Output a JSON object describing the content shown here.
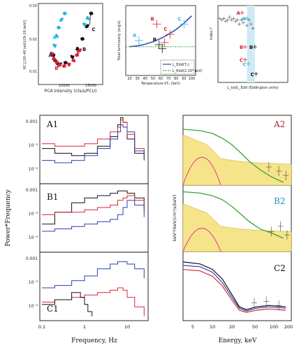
{
  "colors": {
    "black": "#111111",
    "red": "#d8243a",
    "cyan": "#2ab6e0",
    "blue": "#2e3fb0",
    "magenta": "#e0308c",
    "green": "#3ca23c",
    "yellow": "#f6e48a",
    "shade": "#cfeaf5"
  },
  "chart_data": [
    {
      "type": "scatter",
      "xlabel": "PCA Intensity (cts/s/PCU)",
      "ylabel": "HC [(20-40 keV)/(9-20 keV)]",
      "xticks": [
        "10000",
        "15000"
      ],
      "yticks": [
        "0.03",
        "0.02",
        "0.01"
      ],
      "xlim": [
        7000,
        16500
      ],
      "ylim": [
        0.008,
        0.033
      ],
      "series": [
        {
          "color": "black",
          "x": [
            9200,
            9500,
            9800,
            10200,
            11000,
            12000,
            12800,
            13500,
            14200,
            14800
          ],
          "y": [
            0.017,
            0.0155,
            0.0145,
            0.0142,
            0.0148,
            0.0165,
            0.019,
            0.022,
            0.026,
            0.03
          ]
        },
        {
          "color": "red",
          "x": [
            9000,
            9300,
            9700,
            10100,
            10800,
            11500,
            12200,
            12700,
            13100
          ],
          "y": [
            0.0175,
            0.016,
            0.0148,
            0.014,
            0.0138,
            0.0142,
            0.0155,
            0.017,
            0.0185
          ]
        },
        {
          "color": "cyan",
          "x": [
            9400,
            9700,
            10000,
            10400,
            10900,
            13800,
            14300
          ],
          "y": [
            0.02,
            0.023,
            0.0255,
            0.028,
            0.03,
            0.0265,
            0.0285
          ]
        }
      ],
      "point_labels": [
        {
          "text": "A",
          "color": "cyan",
          "x": 9100,
          "y": 0.022
        },
        {
          "text": "A",
          "color": "black",
          "x": 8500,
          "y": 0.0165
        },
        {
          "text": "B",
          "color": "red",
          "x": 9400,
          "y": 0.0125
        },
        {
          "text": "C",
          "color": "red",
          "x": 12600,
          "y": 0.0175
        },
        {
          "text": "B",
          "color": "black",
          "x": 13500,
          "y": 0.0183
        },
        {
          "text": "C",
          "color": "black",
          "x": 14900,
          "y": 0.0245
        }
      ]
    },
    {
      "type": "scatter",
      "xlabel": "Temperature kT_e (keV)",
      "ylabel": "Total luminosity (erg/s)",
      "xticks": [
        "20",
        "30",
        "40",
        "50",
        "60",
        "70",
        "80",
        "90",
        "100"
      ],
      "yticks": [
        "1.5",
        "1",
        "0.5"
      ],
      "xlim": [
        15,
        105
      ],
      "ylim": [
        0.3,
        2.0
      ],
      "model_curve": {
        "x": [
          20,
          30,
          40,
          50,
          60,
          70,
          80,
          90,
          100
        ],
        "y": [
          1.0,
          1.02,
          1.06,
          1.12,
          1.2,
          1.3,
          1.42,
          1.57,
          1.75
        ]
      },
      "edd_line": 1.0,
      "points": [
        {
          "label": "A",
          "color": "cyan",
          "x": 32,
          "y": 1.15
        },
        {
          "label": "B",
          "color": "red",
          "x": 55,
          "y": 1.55
        },
        {
          "label": "B",
          "color": "black",
          "x": 58,
          "y": 1.05
        },
        {
          "label": "C",
          "color": "red",
          "x": 72,
          "y": 1.3
        },
        {
          "label": "C",
          "color": "cyan",
          "x": 90,
          "y": 1.55
        },
        {
          "label": "",
          "color": "red",
          "x": 65,
          "y": 1.1
        },
        {
          "label": "",
          "color": "black",
          "x": 62,
          "y": 0.95
        }
      ],
      "legend": [
        "L_Edd(Te)",
        "L_Edd(2.10^8 keV)"
      ],
      "legend_placement": "bottom-right"
    },
    {
      "type": "scatter",
      "xlabel": "L_tot/L_Edd (Eddington units)",
      "ylabel": "Index Γ",
      "xticks": [
        "1",
        "1.5",
        "2"
      ],
      "yticks": [
        "2.5",
        "2",
        "1.5",
        "1",
        "0.5"
      ],
      "xlim": [
        0.8,
        2.6
      ],
      "ylim": [
        0.3,
        3.0
      ],
      "shaded_band": [
        1.55,
        1.75
      ],
      "series": [
        {
          "color": "grey",
          "x": [
            0.85,
            0.9,
            0.95,
            1.0,
            1.05,
            1.1,
            1.15,
            1.2,
            1.25,
            1.3,
            1.35,
            1.4,
            1.45,
            1.5,
            1.55,
            1.6,
            1.65,
            1.7
          ],
          "y": [
            2.55,
            2.5,
            2.55,
            2.45,
            2.5,
            2.6,
            2.5,
            2.55,
            2.45,
            2.5,
            2.35,
            2.5,
            2.4,
            2.55,
            2.3,
            2.5,
            2.35,
            2.2
          ]
        }
      ],
      "point_labels": [
        {
          "text": "A",
          "color": "red",
          "x": 1.42,
          "y": 2.75
        },
        {
          "text": "A",
          "color": "cyan",
          "x": 1.55,
          "y": 2.55
        },
        {
          "text": "B",
          "color": "red",
          "x": 1.5,
          "y": 1.55
        },
        {
          "text": "B",
          "color": "black",
          "x": 1.75,
          "y": 1.55
        },
        {
          "text": "C",
          "color": "red",
          "x": 1.5,
          "y": 1.1
        },
        {
          "text": "C",
          "color": "cyan",
          "x": 1.58,
          "y": 0.95
        },
        {
          "text": "C",
          "color": "black",
          "x": 1.78,
          "y": 0.6
        }
      ]
    },
    {
      "type": "line",
      "panels": [
        "A1",
        "B1",
        "C1"
      ],
      "xlabel": "Frequency, Hz",
      "ylabel": "Power*Frequency",
      "xticks": [
        "0.1",
        "1",
        "10"
      ],
      "yticks": [
        "0.001",
        "10^-3",
        "10^-4"
      ],
      "x_scale": "log",
      "series_A1": [
        {
          "color": "black",
          "x": [
            0.1,
            0.2,
            0.5,
            1,
            2,
            4,
            6,
            7,
            8,
            10,
            15,
            25
          ],
          "y": [
            -3.7,
            -3.9,
            -4.0,
            -3.9,
            -3.6,
            -3.2,
            -2.7,
            -2.4,
            -2.6,
            -3.3,
            -3.9,
            -4.2
          ]
        },
        {
          "color": "red",
          "x": [
            0.1,
            0.2,
            0.5,
            1,
            2,
            4,
            6,
            7,
            8,
            10,
            15,
            25
          ],
          "y": [
            -3.5,
            -3.6,
            -3.6,
            -3.5,
            -3.3,
            -3.0,
            -2.8,
            -2.5,
            -2.6,
            -3.1,
            -3.7,
            -4.0
          ]
        },
        {
          "color": "blue",
          "x": [
            0.1,
            0.2,
            0.5,
            1,
            2,
            4,
            6,
            7,
            8,
            10,
            15,
            25
          ],
          "y": [
            -4.2,
            -4.3,
            -4.2,
            -4.0,
            -3.7,
            -3.3,
            -3.0,
            -2.7,
            -2.8,
            -3.0,
            -3.8,
            -4.1
          ]
        }
      ],
      "series_B1": [
        {
          "color": "black",
          "x": [
            0.1,
            0.2,
            0.5,
            1,
            2,
            4,
            6,
            8,
            10,
            15,
            25
          ],
          "y": [
            -4.0,
            -3.5,
            -3.1,
            -2.9,
            -2.8,
            -2.7,
            -2.6,
            -2.6,
            -2.7,
            -2.9,
            -3.3
          ]
        },
        {
          "color": "red",
          "x": [
            0.1,
            0.2,
            0.5,
            1,
            2,
            4,
            6,
            8,
            10,
            15,
            25
          ],
          "y": [
            -3.6,
            -3.5,
            -3.5,
            -3.4,
            -3.3,
            -3.2,
            -3.0,
            -2.9,
            -2.8,
            -3.0,
            -3.5
          ]
        },
        {
          "color": "blue",
          "x": [
            0.1,
            0.2,
            0.5,
            1,
            2,
            4,
            6,
            8,
            10,
            15,
            25
          ],
          "y": [
            -4.3,
            -4.2,
            -4.1,
            -4.0,
            -3.9,
            -3.8,
            -3.6,
            -3.3,
            -3.0,
            -3.2,
            -3.7
          ]
        }
      ],
      "series_C1": [
        {
          "color": "blue",
          "x": [
            0.1,
            0.2,
            0.5,
            1,
            2,
            4,
            6,
            8,
            10,
            15,
            25
          ],
          "y": [
            -3.8,
            -3.7,
            -3.5,
            -3.3,
            -3.0,
            -2.8,
            -2.7,
            -2.7,
            -2.8,
            -3.0,
            -3.4
          ]
        },
        {
          "color": "red",
          "x": [
            0.1,
            0.2,
            0.5,
            1,
            2,
            4,
            6,
            8,
            10,
            15,
            25
          ],
          "y": [
            -4.4,
            -4.3,
            -4.2,
            -4.1,
            -4.0,
            -3.9,
            -3.8,
            -3.9,
            -4.2,
            -4.6,
            -5.0
          ]
        },
        {
          "color": "black",
          "x": [
            0.1,
            0.2,
            0.5,
            0.8,
            1,
            1.2,
            1.5
          ],
          "y": [
            -4.5,
            -4.3,
            -4.0,
            -4.2,
            -4.5,
            -4.8,
            -5.0
          ]
        }
      ]
    },
    {
      "type": "line",
      "panels": [
        "A2",
        "B2",
        "C2"
      ],
      "xlabel": "Energy, keV",
      "ylabel": "keV*(keV/cm^2/s/keV)",
      "xticks": [
        "5",
        "10",
        "20",
        "50",
        "100",
        "200"
      ],
      "x_scale": "log",
      "y_scale": "log"
    }
  ],
  "texts": {
    "t_panel_a1": "A1",
    "t_panel_b1": "B1",
    "t_panel_c1": "C1",
    "t_panel_a2": "A2",
    "t_panel_b2": "B2",
    "t_panel_c2": "C2",
    "ytick_a1_0": "0.001",
    "ytick_a1_1": "10⁻³",
    "ytick_a1_2": "10⁻⁴",
    "ytick_b1_0": "0.001",
    "ytick_b1_1": "10⁻³",
    "ytick_b1_2": "10⁻⁴",
    "ytick_c1_0": "0.001",
    "ytick_c1_1": "10⁻³",
    "ytick_c1_2": "10⁻⁴",
    "xtick_f0": "0.1",
    "xtick_f1": "1",
    "xtick_f2": "10",
    "xtick_e0": "5",
    "xtick_e1": "10",
    "xtick_e2": "20",
    "xtick_e3": "50",
    "xtick_e4": "100",
    "xtick_e5": "200",
    "ylabel_left": "Power*Frequency",
    "xlabel_left": "Frequency, Hz",
    "ylabel_right": "keV*(keV/cm²/s/keV)",
    "xlabel_right": "Energy, keV",
    "hc_xlabel": "PCA Intensity (cts/s/PCU)",
    "hc_ylabel": "HC [(20–40 keV)/(9–20 keV)]",
    "hc_xtick0": "10000",
    "hc_xtick1": "15000",
    "hc_ytick0": "0.03",
    "hc_ytick1": "0.02",
    "hc_ytick2": "0.01",
    "temp_xlabel": "Temperature kTₑ (keV)",
    "temp_ylabel": "Total luminosity (erg/s)",
    "temp_leg0": "L_Edd(Tₑ)",
    "temp_leg1": "L_Edd(2.10⁸ keV)",
    "idx_xlabel": "L_tot/L_Edd (Eddington units)",
    "idx_ylabel": "Index Γ"
  }
}
